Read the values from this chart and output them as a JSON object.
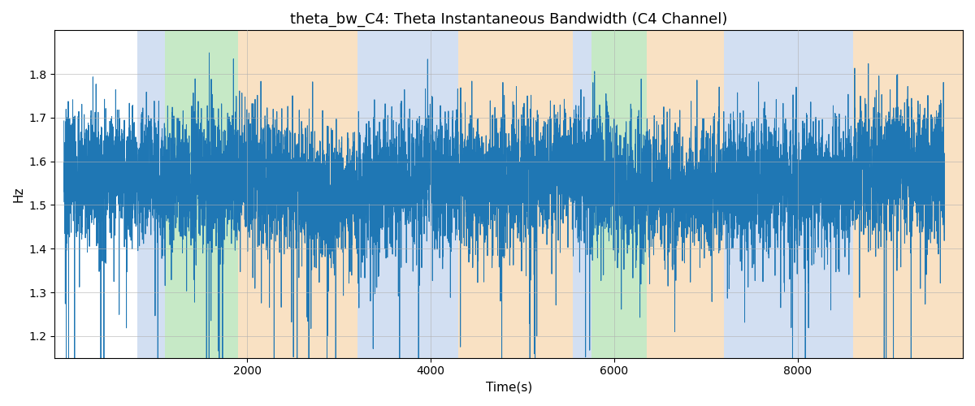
{
  "title": "theta_bw_C4: Theta Instantaneous Bandwidth (C4 Channel)",
  "xlabel": "Time(s)",
  "ylabel": "Hz",
  "ylim": [
    1.15,
    1.9
  ],
  "xlim": [
    -100,
    9800
  ],
  "yticks": [
    1.2,
    1.3,
    1.4,
    1.5,
    1.6,
    1.7,
    1.8
  ],
  "xticks": [
    2000,
    4000,
    6000,
    8000
  ],
  "line_color": "#1f77b4",
  "line_width": 0.7,
  "grid_color": "#b0b0b0",
  "bg_color": "#ffffff",
  "signal_mean": 1.555,
  "signal_std": 0.075,
  "spike_prob": 0.03,
  "spike_magnitude": 0.18,
  "n_points": 9600,
  "seed": 7,
  "colored_regions": [
    {
      "start": 800,
      "end": 1100,
      "color": "#aec6e8",
      "alpha": 0.55
    },
    {
      "start": 1100,
      "end": 1900,
      "color": "#98d898",
      "alpha": 0.55
    },
    {
      "start": 1900,
      "end": 3200,
      "color": "#f5c992",
      "alpha": 0.55
    },
    {
      "start": 3200,
      "end": 4300,
      "color": "#aec6e8",
      "alpha": 0.55
    },
    {
      "start": 4300,
      "end": 5550,
      "color": "#f5c992",
      "alpha": 0.55
    },
    {
      "start": 5550,
      "end": 5750,
      "color": "#aec6e8",
      "alpha": 0.55
    },
    {
      "start": 5750,
      "end": 6350,
      "color": "#98d898",
      "alpha": 0.55
    },
    {
      "start": 6350,
      "end": 7200,
      "color": "#f5c992",
      "alpha": 0.55
    },
    {
      "start": 7200,
      "end": 8600,
      "color": "#aec6e8",
      "alpha": 0.55
    },
    {
      "start": 8600,
      "end": 9800,
      "color": "#f5c992",
      "alpha": 0.55
    }
  ],
  "figsize": [
    12.0,
    5.0
  ],
  "dpi": 100,
  "title_fontsize": 13,
  "label_fontsize": 11
}
